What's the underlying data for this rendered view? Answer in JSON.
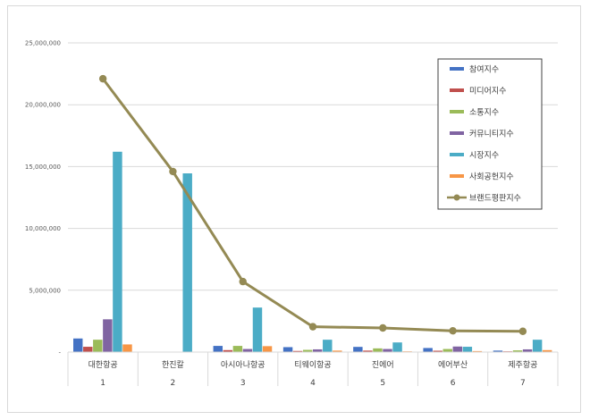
{
  "chart_data": {
    "type": "bar",
    "title": "",
    "xlabel": "",
    "ylabel": "",
    "ylim": [
      0,
      25000000
    ],
    "yticks": [
      "-",
      "5,000,000",
      "10,000,000",
      "15,000,000",
      "20,000,000",
      "25,000,000"
    ],
    "categories": [
      "대한항공",
      "한진칼",
      "아시아나항공",
      "티웨이항공",
      "진에어",
      "에어부산",
      "제주항공"
    ],
    "category_index": [
      "1",
      "2",
      "3",
      "4",
      "5",
      "6",
      "7"
    ],
    "grid": true,
    "legend_position": "top-right",
    "series": [
      {
        "name": "참여지수",
        "kind": "bar",
        "color": "#4472c4",
        "values": [
          1100000,
          20000,
          500000,
          400000,
          420000,
          330000,
          120000
        ]
      },
      {
        "name": "미디어지수",
        "kind": "bar",
        "color": "#c0504d",
        "values": [
          430000,
          15000,
          160000,
          90000,
          120000,
          110000,
          60000
        ]
      },
      {
        "name": "소통지수",
        "kind": "bar",
        "color": "#9bbb59",
        "values": [
          1000000,
          15000,
          500000,
          180000,
          300000,
          250000,
          140000
        ]
      },
      {
        "name": "커뮤니티지수",
        "kind": "bar",
        "color": "#8064a2",
        "values": [
          2650000,
          15000,
          250000,
          220000,
          250000,
          450000,
          220000
        ]
      },
      {
        "name": "시장지수",
        "kind": "bar",
        "color": "#4bacc6",
        "values": [
          16200000,
          14450000,
          3600000,
          1000000,
          780000,
          430000,
          1000000
        ]
      },
      {
        "name": "사회공헌지수",
        "kind": "bar",
        "color": "#f79646",
        "values": [
          620000,
          15000,
          480000,
          120000,
          60000,
          80000,
          160000
        ]
      },
      {
        "name": "브랜드평판지수",
        "kind": "line",
        "color": "#948a54",
        "values": [
          22100000,
          14600000,
          5700000,
          2050000,
          1950000,
          1720000,
          1680000
        ]
      }
    ]
  }
}
